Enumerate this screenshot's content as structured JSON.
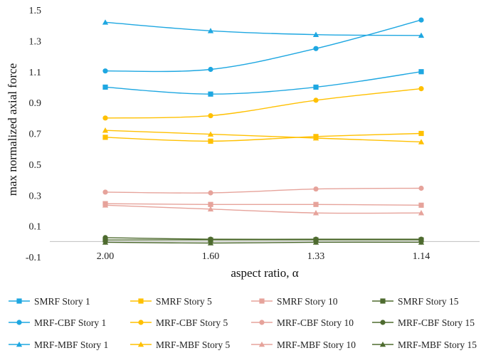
{
  "chart_data": {
    "type": "line",
    "title": "",
    "xlabel": "aspect ratio, α",
    "ylabel": "max normalized axial force",
    "categories": [
      "2.00",
      "1.60",
      "1.33",
      "1.14"
    ],
    "ylim": [
      -0.1,
      1.5
    ],
    "yticks": [
      "-0.1",
      "0.1",
      "0.3",
      "0.5",
      "0.7",
      "0.9",
      "1.1",
      "1.3",
      "1.5"
    ],
    "grid": false,
    "legend_position": "bottom",
    "series": [
      {
        "name": "SMRF Story 1",
        "color": "#1EA7E1",
        "marker": "square",
        "values": [
          1.0,
          0.955,
          1.0,
          1.1
        ]
      },
      {
        "name": "SMRF Story 5",
        "color": "#FFC000",
        "marker": "square",
        "values": [
          0.675,
          0.65,
          0.68,
          0.7
        ]
      },
      {
        "name": "SMRF Story 10",
        "color": "#E6A39B",
        "marker": "square",
        "values": [
          0.245,
          0.24,
          0.24,
          0.235
        ]
      },
      {
        "name": "SMRF Story 15",
        "color": "#4E6B2F",
        "marker": "square",
        "values": [
          0.01,
          0.01,
          0.01,
          0.01
        ]
      },
      {
        "name": "MRF-CBF Story 1",
        "color": "#1EA7E1",
        "marker": "circle",
        "values": [
          1.105,
          1.115,
          1.25,
          1.435
        ]
      },
      {
        "name": "MRF-CBF Story 5",
        "color": "#FFC000",
        "marker": "circle",
        "values": [
          0.8,
          0.815,
          0.915,
          0.99
        ]
      },
      {
        "name": "MRF-CBF Story 10",
        "color": "#E6A39B",
        "marker": "circle",
        "values": [
          0.32,
          0.315,
          0.34,
          0.345
        ]
      },
      {
        "name": "MRF-CBF  Story 15",
        "color": "#4E6B2F",
        "marker": "circle",
        "values": [
          0.025,
          0.015,
          0.015,
          0.015
        ]
      },
      {
        "name": "MRF-MBF Story 1",
        "color": "#1EA7E1",
        "marker": "triangle",
        "values": [
          1.42,
          1.365,
          1.34,
          1.335
        ]
      },
      {
        "name": "MRF-MBF Story 5",
        "color": "#FFC000",
        "marker": "triangle",
        "values": [
          0.72,
          0.695,
          0.67,
          0.645
        ]
      },
      {
        "name": "MRF-MBF Story 10",
        "color": "#E6A39B",
        "marker": "triangle",
        "values": [
          0.235,
          0.21,
          0.185,
          0.185
        ]
      },
      {
        "name": "MRF-MBF Story 15",
        "color": "#4E6B2F",
        "marker": "triangle",
        "values": [
          -0.005,
          -0.01,
          -0.005,
          -0.005
        ]
      }
    ]
  }
}
